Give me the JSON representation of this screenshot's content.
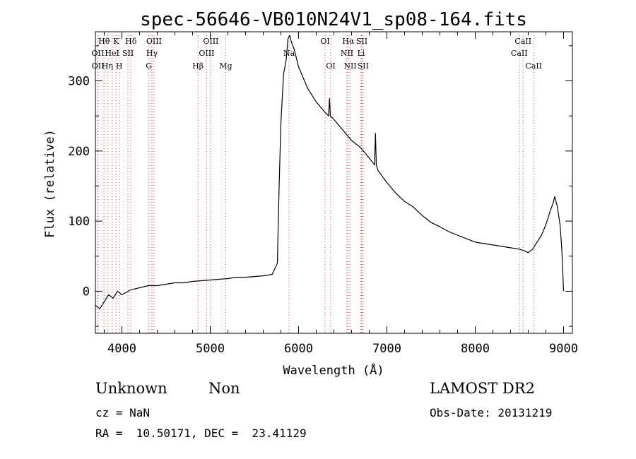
{
  "chart_data": {
    "type": "line",
    "title": "spec-56646-VB010N24V1_sp08-164.fits",
    "xlabel": "Wavelength (Å)",
    "ylabel": "Flux (relative)",
    "xlim": [
      3700,
      9100
    ],
    "ylim": [
      -60,
      370
    ],
    "x_ticks": [
      4000,
      5000,
      6000,
      7000,
      8000,
      9000
    ],
    "y_ticks": [
      0,
      100,
      200,
      300
    ],
    "grid": false,
    "series": [
      {
        "x": [
          3700,
          3750,
          3800,
          3850,
          3900,
          3950,
          4000,
          4100,
          4200,
          4300,
          4400,
          4500,
          4600,
          4700,
          4800,
          4900,
          5000,
          5100,
          5200,
          5300,
          5400,
          5500,
          5600,
          5700,
          5760,
          5780,
          5800,
          5830,
          5860,
          5880,
          5900,
          5920,
          5950,
          6000,
          6050,
          6100,
          6200,
          6300,
          6340,
          6350,
          6360,
          6400,
          6500,
          6600,
          6700,
          6800,
          6860,
          6870,
          6880,
          6900,
          7000,
          7100,
          7200,
          7300,
          7400,
          7500,
          7600,
          7700,
          7800,
          7900,
          8000,
          8100,
          8200,
          8300,
          8400,
          8500,
          8550,
          8600,
          8650,
          8700,
          8750,
          8800,
          8850,
          8880,
          8900,
          8930,
          8960,
          8980,
          9000
        ],
        "y": [
          -20,
          -25,
          -15,
          -5,
          -10,
          0,
          -5,
          2,
          5,
          8,
          8,
          10,
          12,
          12,
          14,
          15,
          16,
          17,
          18,
          20,
          20,
          21,
          22,
          24,
          40,
          150,
          240,
          310,
          330,
          360,
          365,
          355,
          345,
          320,
          305,
          290,
          270,
          255,
          250,
          275,
          250,
          245,
          230,
          215,
          205,
          190,
          180,
          225,
          180,
          172,
          155,
          140,
          128,
          120,
          108,
          98,
          92,
          85,
          80,
          75,
          70,
          68,
          66,
          64,
          62,
          60,
          58,
          55,
          60,
          70,
          80,
          95,
          115,
          125,
          135,
          120,
          95,
          60,
          0
        ]
      }
    ],
    "lines": [
      {
        "label": "Hθ",
        "x": 3798,
        "row": 1
      },
      {
        "label": "OII",
        "x": 3727,
        "row": 2
      },
      {
        "label": "OII",
        "x": 3729,
        "row": 3
      },
      {
        "label": "K",
        "x": 3934,
        "row": 1
      },
      {
        "label": "HeI",
        "x": 3889,
        "row": 2
      },
      {
        "label": "Hη",
        "x": 3835,
        "row": 3
      },
      {
        "label": "SII",
        "x": 4069,
        "row": 2
      },
      {
        "label": "H",
        "x": 3969,
        "row": 3
      },
      {
        "label": "Hδ",
        "x": 4102,
        "row": 1
      },
      {
        "label": "OIII",
        "x": 4363,
        "row": 1
      },
      {
        "label": "Hγ",
        "x": 4340,
        "row": 2
      },
      {
        "label": "G",
        "x": 4305,
        "row": 3
      },
      {
        "label": "OIII",
        "x": 5007,
        "row": 1
      },
      {
        "label": "OIII",
        "x": 4959,
        "row": 2
      },
      {
        "label": "Hβ",
        "x": 4861,
        "row": 3
      },
      {
        "label": "Mg",
        "x": 5175,
        "row": 3
      },
      {
        "label": "Na",
        "x": 5893,
        "row": 2
      },
      {
        "label": "OI",
        "x": 6300,
        "row": 1
      },
      {
        "label": "OI",
        "x": 6364,
        "row": 3
      },
      {
        "label": "Hα",
        "x": 6563,
        "row": 1
      },
      {
        "label": "SII",
        "x": 6716,
        "row": 1
      },
      {
        "label": "NII",
        "x": 6548,
        "row": 2
      },
      {
        "label": "Li",
        "x": 6708,
        "row": 2
      },
      {
        "label": "NII",
        "x": 6584,
        "row": 3
      },
      {
        "label": "SII",
        "x": 6731,
        "row": 3
      },
      {
        "label": "CaII",
        "x": 8542,
        "row": 1
      },
      {
        "label": "CaII",
        "x": 8498,
        "row": 2
      },
      {
        "label": "CaII",
        "x": 8662,
        "row": 3
      }
    ]
  },
  "info": {
    "class": "Unknown",
    "subclass": "Non",
    "survey": "LAMOST DR2",
    "redshift": "cz = NaN",
    "obs_date": "Obs-Date: 20131219",
    "coords": "RA =  10.50171, DEC =  23.41129"
  }
}
